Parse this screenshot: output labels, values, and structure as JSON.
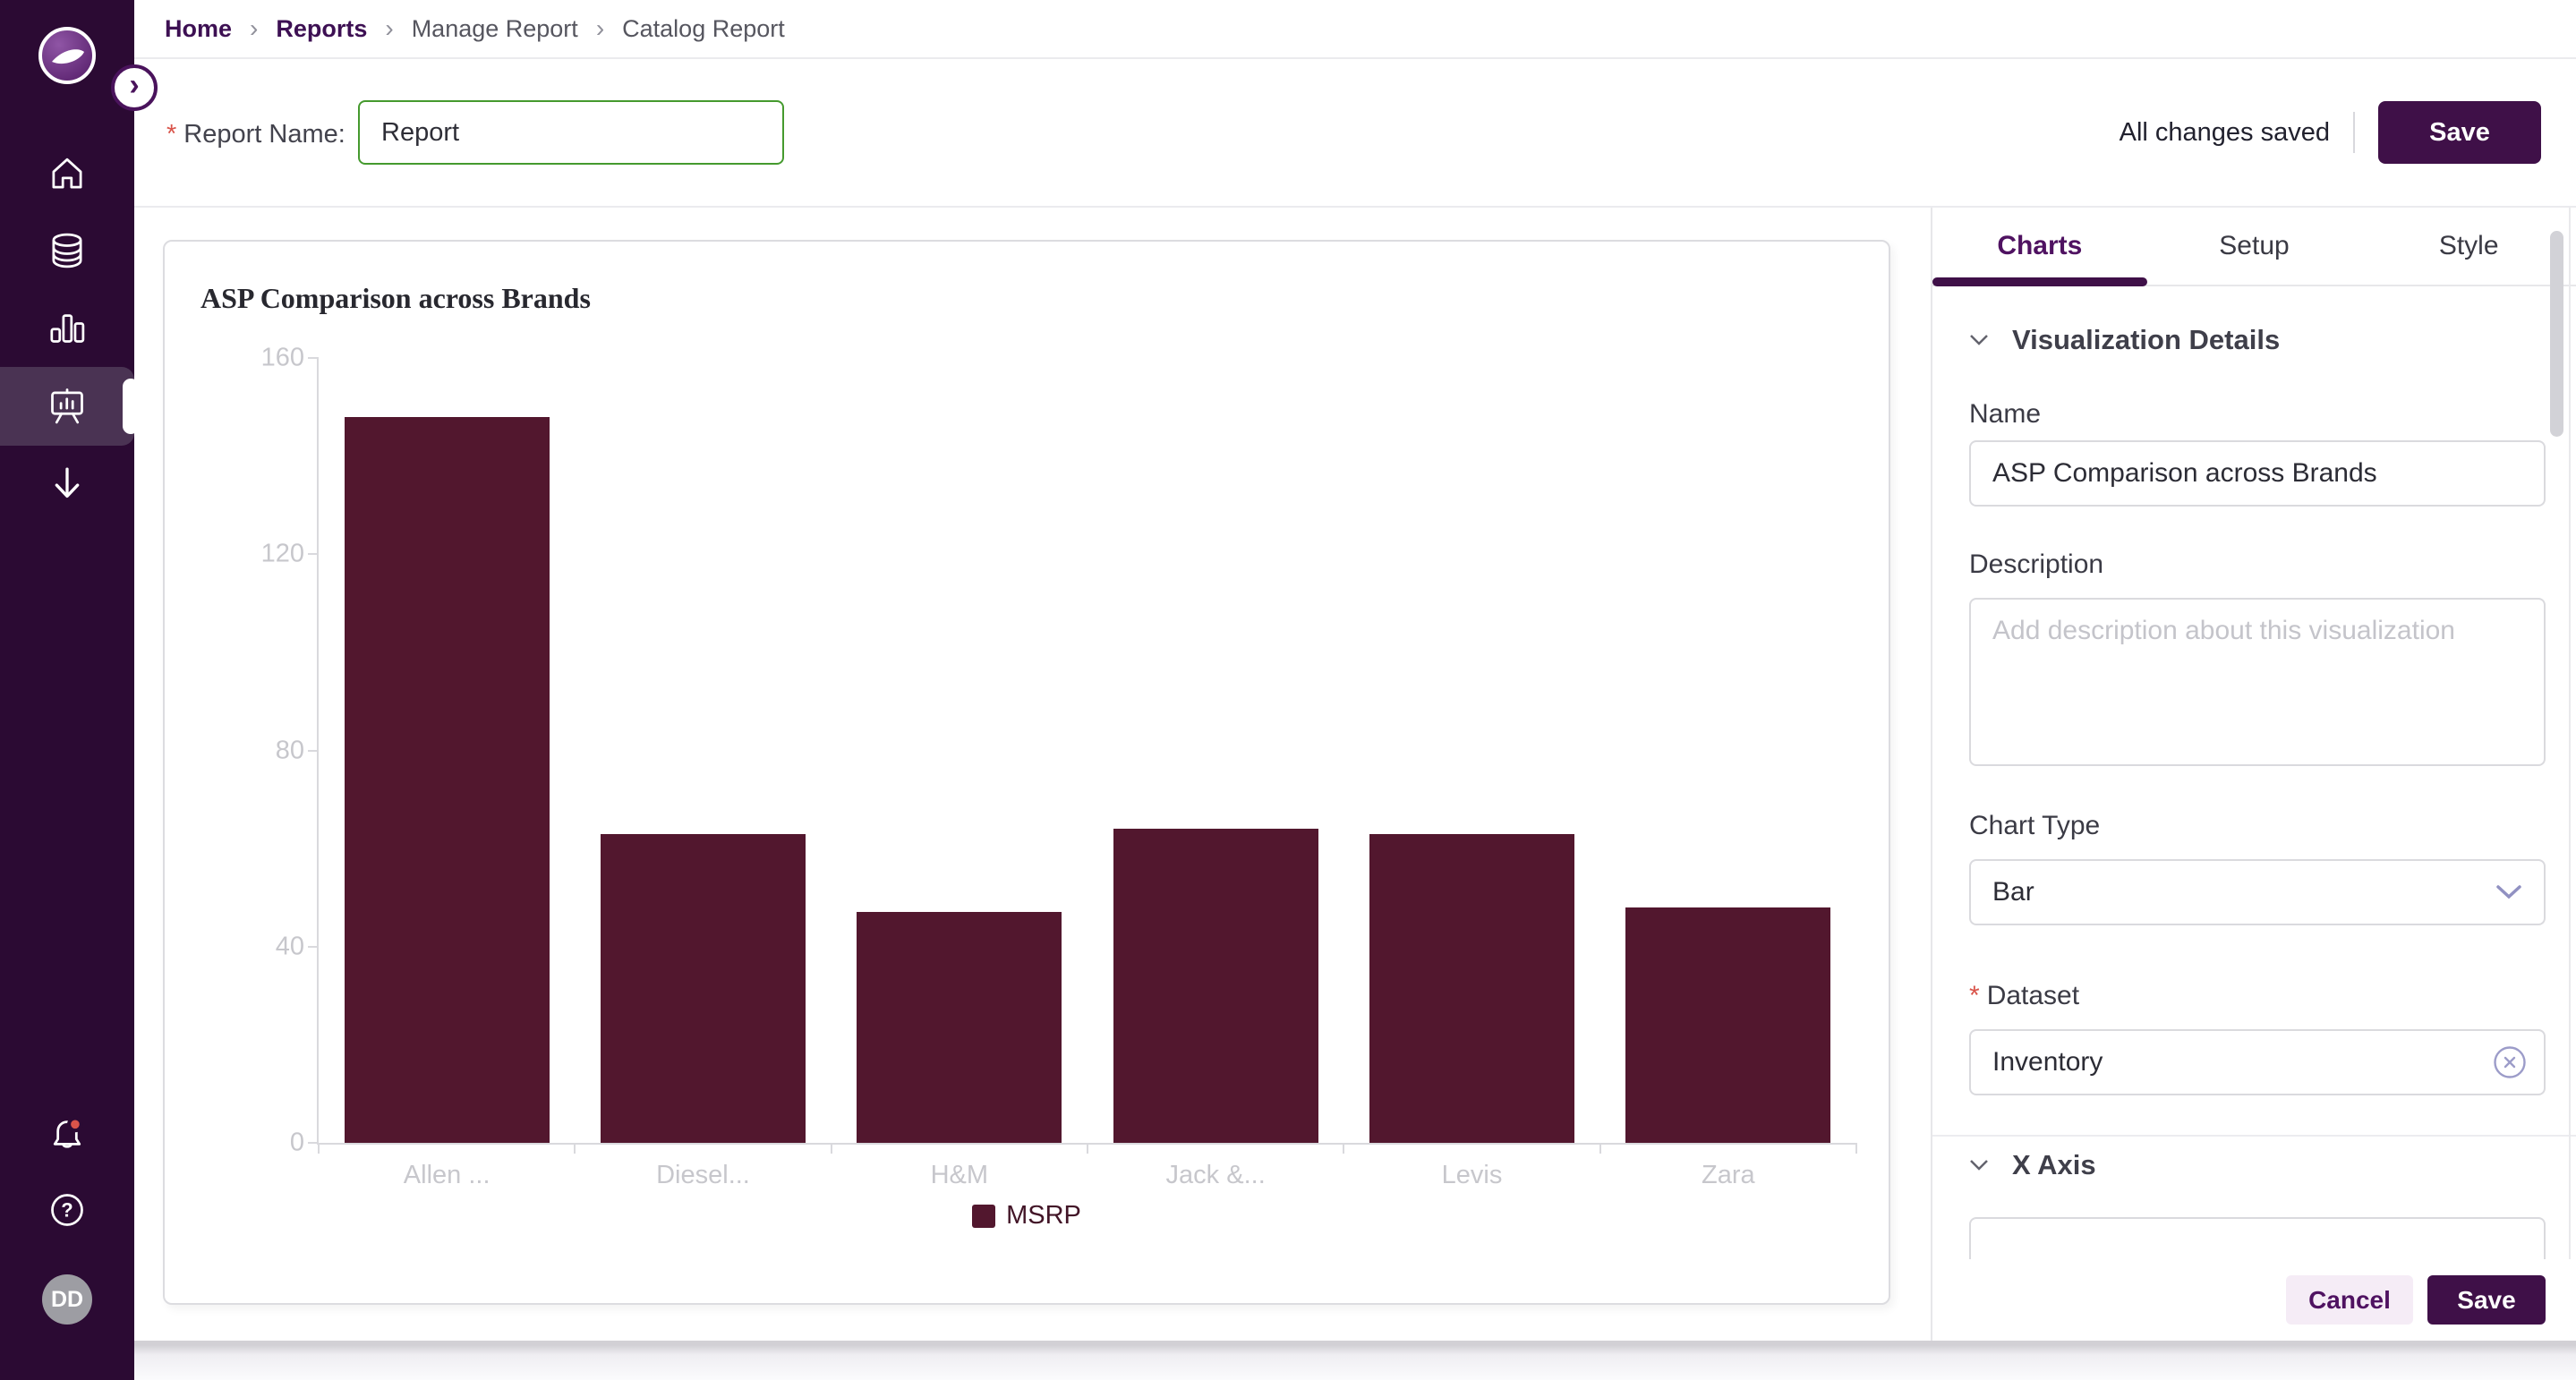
{
  "breadcrumb": {
    "items": [
      {
        "label": "Home",
        "link": true
      },
      {
        "label": "Reports",
        "link": true
      },
      {
        "label": "Manage Report",
        "link": false
      },
      {
        "label": "Catalog Report",
        "link": false
      }
    ]
  },
  "report_form": {
    "required_marker": "*",
    "name_label": "Report Name:",
    "name_value": "Report"
  },
  "header_actions": {
    "status_text": "All changes saved",
    "save_label": "Save"
  },
  "sidebar": {
    "icons": [
      "home-icon",
      "database-icon",
      "bar-chart-icon",
      "presentation-chart-icon",
      "download-arrow-icon"
    ],
    "active_icon": "presentation-chart-icon",
    "bottom_icons": [
      "bell-icon",
      "help-icon"
    ],
    "has_notification_dot": true,
    "avatar_initials": "DD",
    "expand_icon": "›"
  },
  "chart_data": {
    "type": "bar",
    "title": "ASP Comparison across Brands",
    "categories": [
      "Allen ...",
      "Diesel...",
      "H&M",
      "Jack &...",
      "Levis",
      "Zara"
    ],
    "series": [
      {
        "name": "MSRP",
        "values": [
          148,
          63,
          47,
          64,
          63,
          48
        ]
      }
    ],
    "ylim": [
      0,
      160
    ],
    "yticks": [
      0,
      40,
      80,
      120,
      160
    ],
    "bar_color": "#52172e",
    "grid": false,
    "legend_position": "bottom"
  },
  "panel": {
    "tabs": [
      {
        "label": "Charts",
        "active": true
      },
      {
        "label": "Setup",
        "active": false
      },
      {
        "label": "Style",
        "active": false
      }
    ],
    "visualization_details_label": "Visualization Details",
    "name_label": "Name",
    "name_value": "ASP Comparison across Brands",
    "description_label": "Description",
    "description_placeholder": "Add description about this visualization",
    "description_value": "",
    "chart_type_label": "Chart Type",
    "chart_type_value": "Bar",
    "dataset_required_marker": "*",
    "dataset_label": "Dataset",
    "dataset_value": "Inventory",
    "x_axis_label": "X Axis",
    "footer": {
      "cancel_label": "Cancel",
      "save_label": "Save"
    }
  },
  "colors": {
    "sidebar_bg": "#2b0a33",
    "brand_dark_purple": "#3f1048",
    "brand_purple": "#4f1261",
    "bar_maroon": "#52172e",
    "valid_input_green": "#459a2e",
    "required_red": "#d9544a",
    "muted_axis_gray": "#c7c7cc"
  }
}
